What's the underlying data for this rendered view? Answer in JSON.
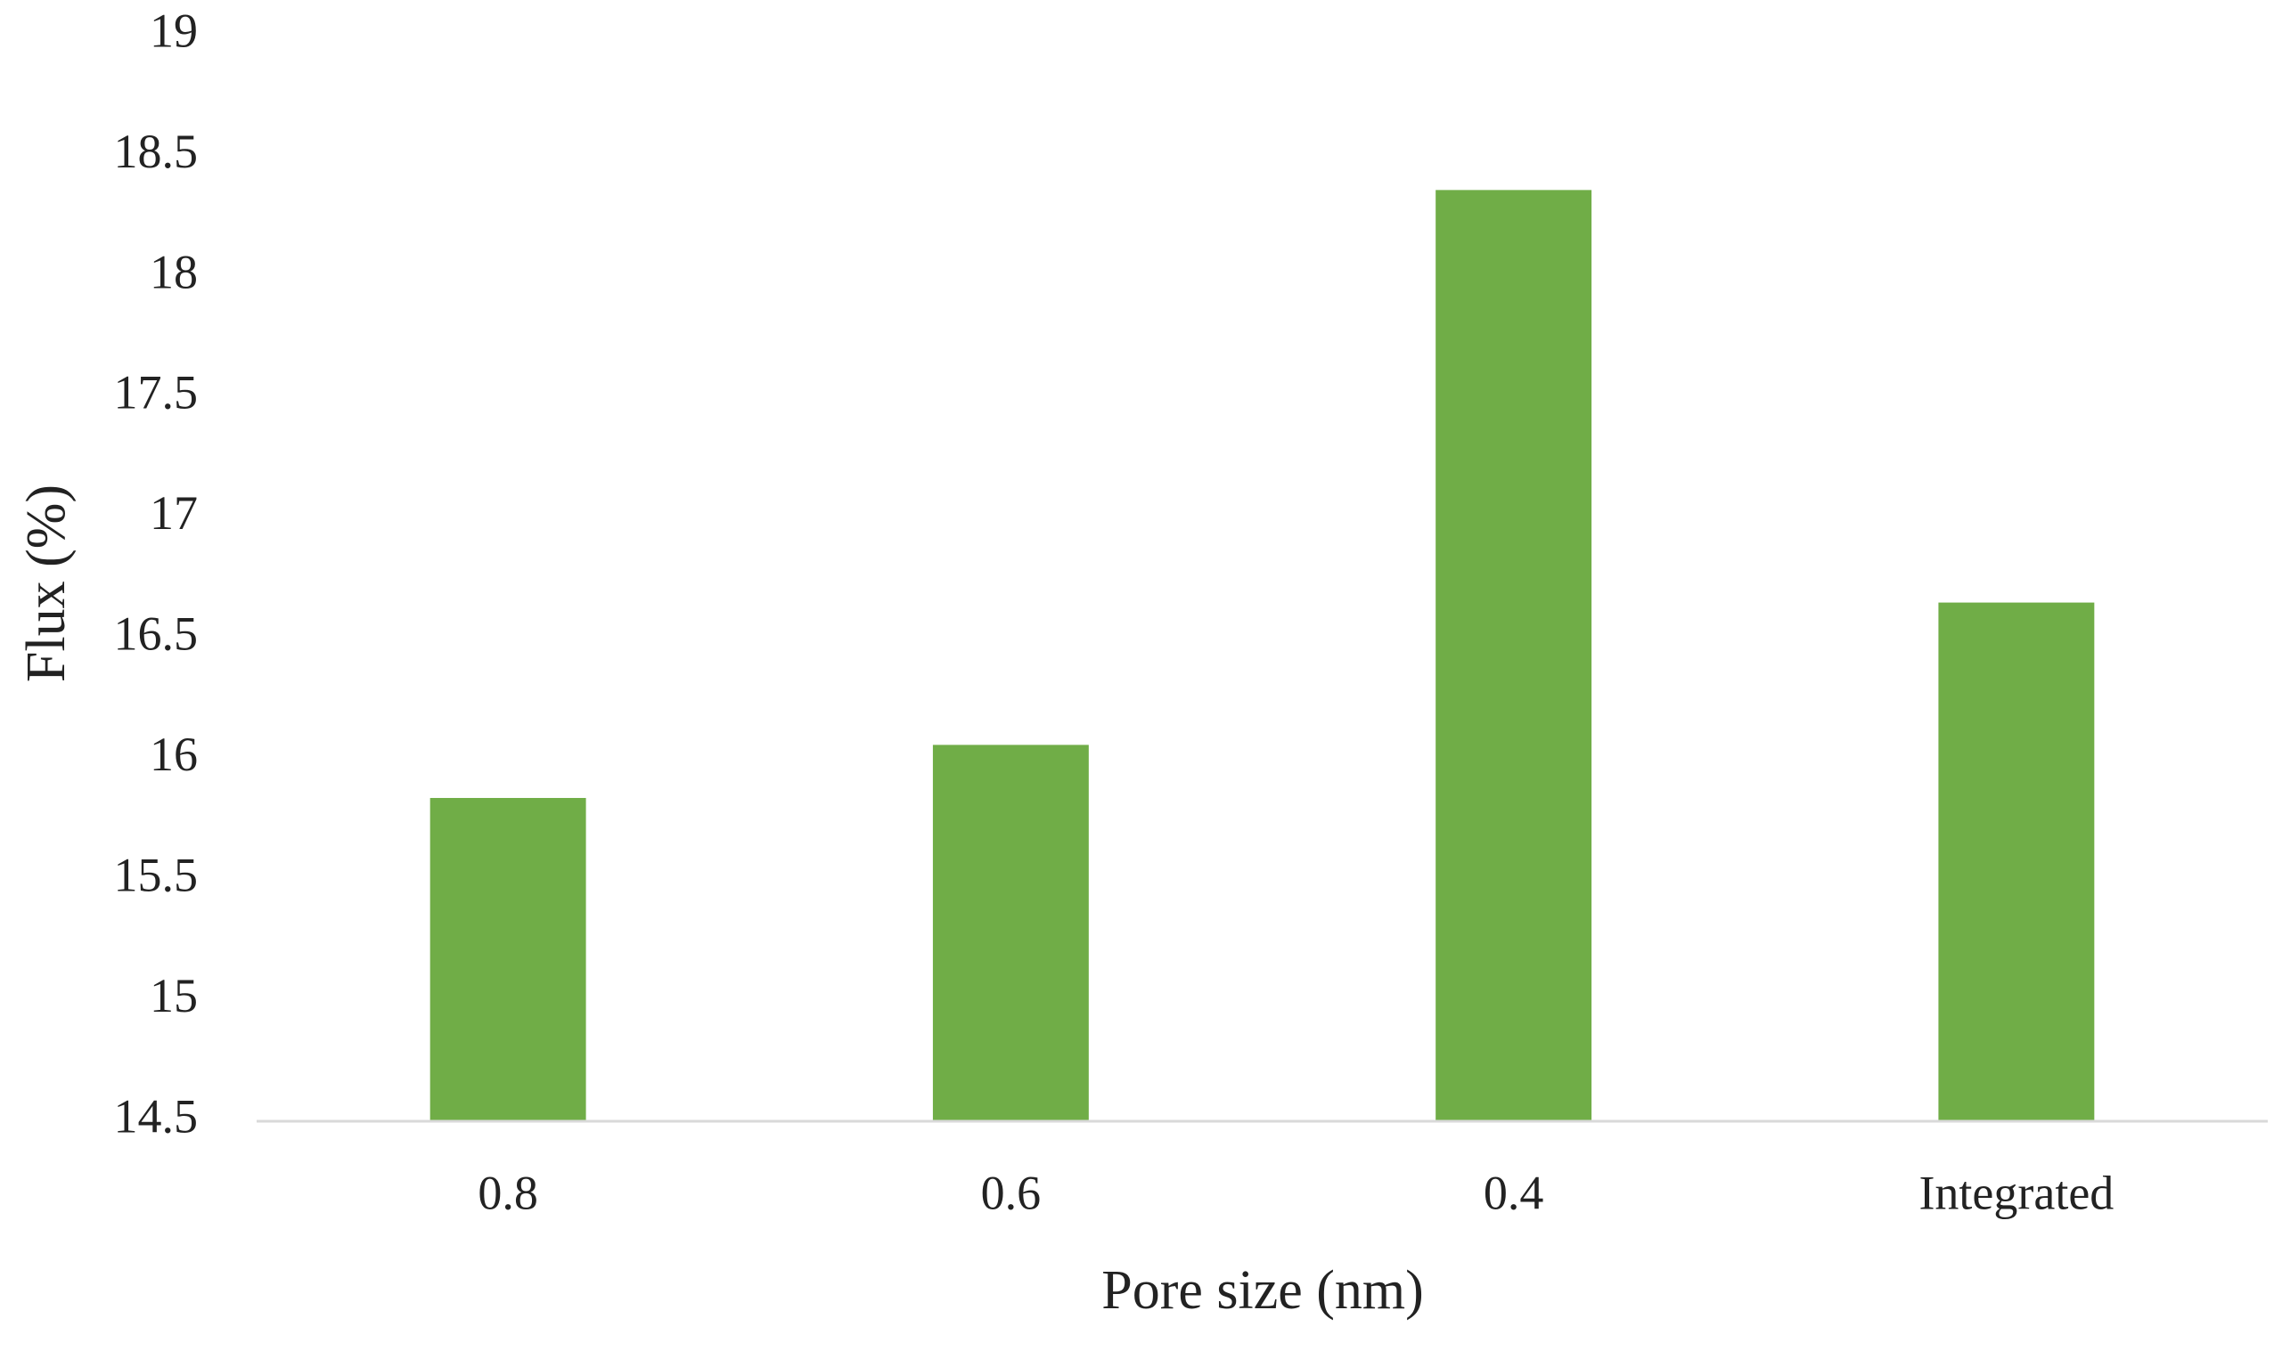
{
  "chart_data": {
    "type": "bar",
    "x_label": "Pore size (nm)",
    "y_label": "Flux (%)",
    "categories": [
      "0.8",
      "0.6",
      "0.4",
      "Integrated"
    ],
    "values": [
      15.84,
      16.06,
      18.36,
      16.65
    ],
    "color": "#70ad47",
    "ylim": [
      14.5,
      19
    ],
    "yticks": [
      14.5,
      15,
      15.5,
      16,
      16.5,
      17,
      17.5,
      18,
      18.5,
      19
    ],
    "grid": false
  }
}
